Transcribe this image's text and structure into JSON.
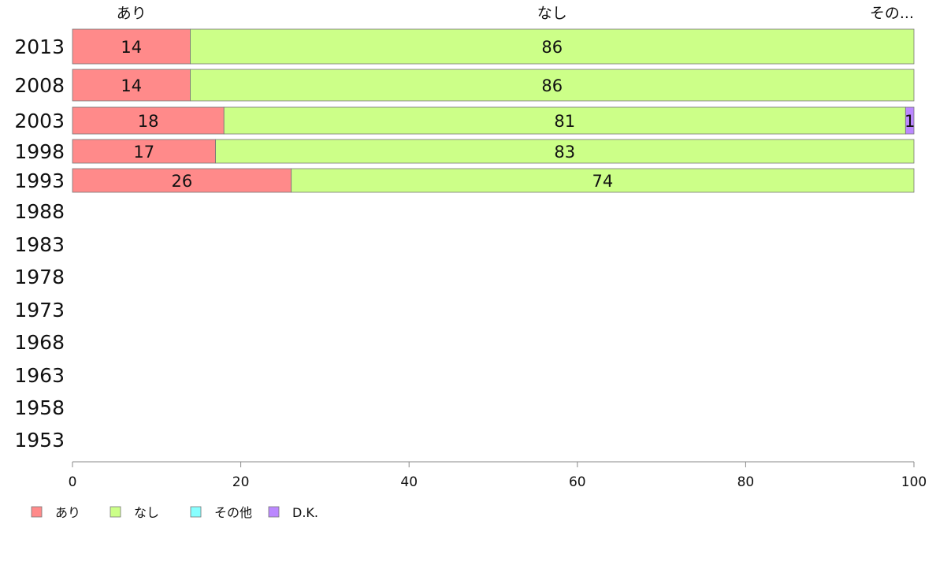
{
  "chart_data": {
    "type": "bar",
    "orientation": "horizontal",
    "stacked": true,
    "categories": [
      "2013",
      "2008",
      "2003",
      "1998",
      "1993",
      "1988",
      "1983",
      "1978",
      "1973",
      "1968",
      "1963",
      "1958",
      "1953"
    ],
    "series": [
      {
        "name": "あり",
        "color": "#ff8a8a",
        "values": [
          14,
          14,
          18,
          17,
          26,
          null,
          null,
          null,
          null,
          null,
          null,
          null,
          null
        ]
      },
      {
        "name": "なし",
        "color": "#ccff88",
        "values": [
          86,
          86,
          81,
          83,
          74,
          null,
          null,
          null,
          null,
          null,
          null,
          null,
          null
        ]
      },
      {
        "name": "その他",
        "color": "#88ffff",
        "values": [
          0,
          0,
          0,
          0,
          0,
          null,
          null,
          null,
          null,
          null,
          null,
          null,
          null
        ]
      },
      {
        "name": "D.K.",
        "color": "#bb88ff",
        "values": [
          0,
          0,
          1,
          0,
          0,
          null,
          null,
          null,
          null,
          null,
          null,
          null,
          null
        ]
      }
    ],
    "top_labels": [
      "あり",
      "なし",
      "その..."
    ],
    "xlim": [
      0,
      100
    ],
    "xticks": [
      0,
      20,
      40,
      60,
      80,
      100
    ],
    "xlabel": "",
    "ylabel": "",
    "grid": false,
    "legend_position": "bottom-left"
  }
}
